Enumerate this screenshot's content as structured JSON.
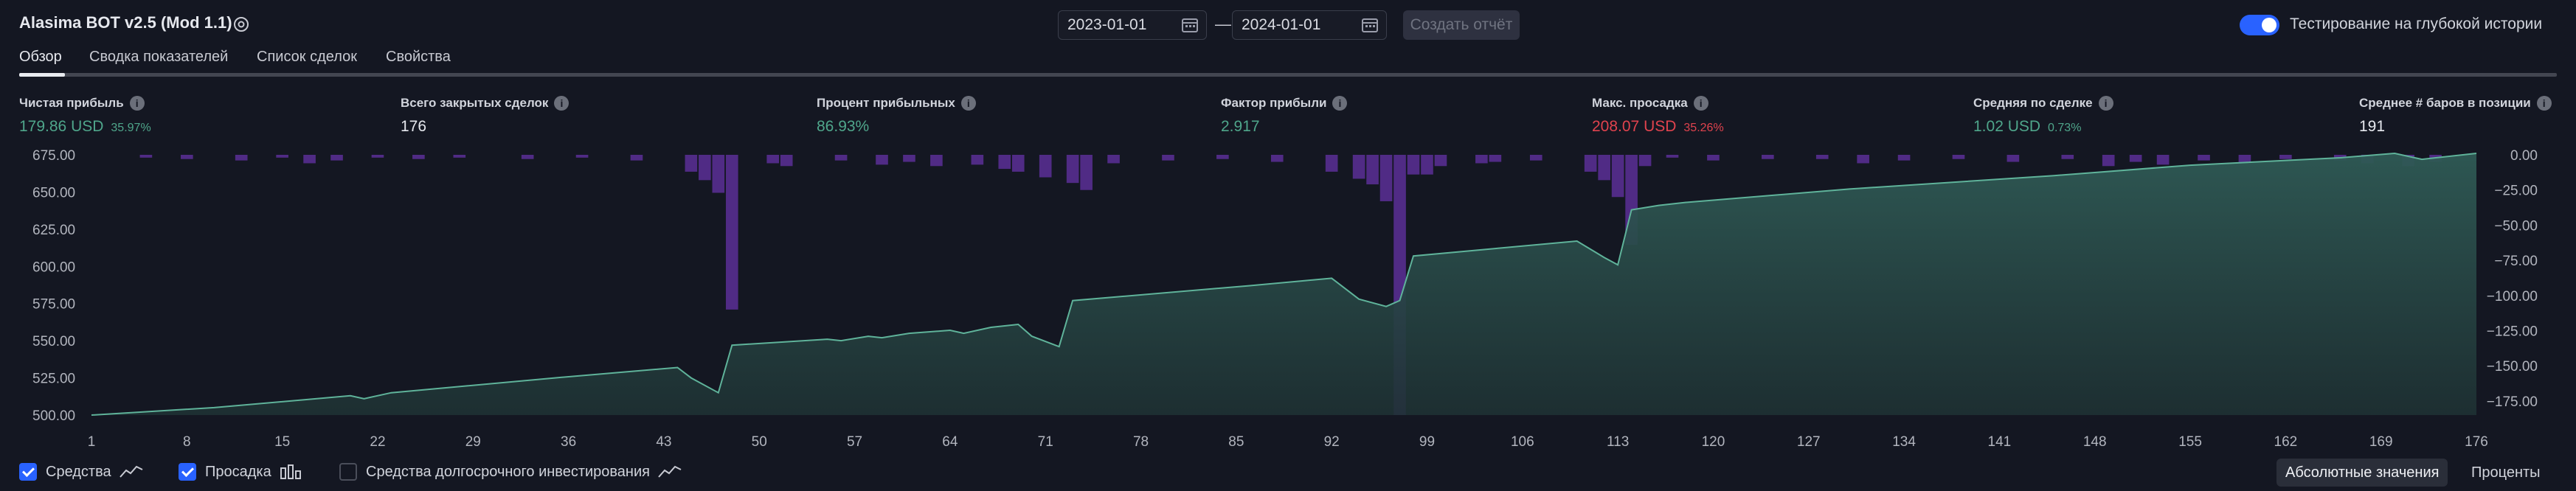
{
  "app": {
    "title": "Alasima BOT v2.5 (Mod 1.1)",
    "date_from": "2023-01-01",
    "date_to": "2024-01-01",
    "date_separator": "—",
    "create_report_label": "Создать отчёт",
    "deep_history_label": "Тестирование на глубокой истории",
    "deep_history_enabled": true
  },
  "tabs": [
    {
      "label": "Обзор",
      "active": true
    },
    {
      "label": "Сводка показателей",
      "active": false
    },
    {
      "label": "Список сделок",
      "active": false
    },
    {
      "label": "Свойства",
      "active": false
    }
  ],
  "stats": [
    {
      "label": "Чистая прибыль",
      "value": "179.86 USD",
      "pct": "35.97%",
      "color": "#4fa68b"
    },
    {
      "label": "Всего закрытых сделок",
      "value": "176",
      "pct": "",
      "color": "#e6e8ee"
    },
    {
      "label": "Процент прибыльных",
      "value": "86.93%",
      "pct": "",
      "color": "#4fa68b"
    },
    {
      "label": "Фактор прибыли",
      "value": "2.917",
      "pct": "",
      "color": "#4fa68b"
    },
    {
      "label": "Макс. просадка",
      "value": "208.07 USD",
      "pct": "35.26%",
      "color": "#e0434e"
    },
    {
      "label": "Средняя по сделке",
      "value": "1.02 USD",
      "pct": "0.73%",
      "color": "#4fa68b"
    },
    {
      "label": "Среднее # баров в позиции",
      "value": "191",
      "pct": "",
      "color": "#e6e8ee"
    }
  ],
  "chart_data": {
    "type": "area",
    "x_ticks": [
      "1",
      "8",
      "15",
      "22",
      "29",
      "36",
      "43",
      "50",
      "57",
      "64",
      "71",
      "78",
      "85",
      "92",
      "99",
      "106",
      "113",
      "120",
      "127",
      "134",
      "141",
      "148",
      "155",
      "162",
      "169",
      "176"
    ],
    "y_left_ticks": [
      "675.00",
      "650.00",
      "625.00",
      "600.00",
      "575.00",
      "550.00",
      "525.00",
      "500.00"
    ],
    "y_right_ticks": [
      "0.00",
      "−25.00",
      "−50.00",
      "−75.00",
      "−100.00",
      "−125.00",
      "−150.00",
      "−175.00"
    ],
    "ylim_left": [
      500,
      675
    ],
    "ylim_right": [
      -185,
      0
    ],
    "xlim": [
      1,
      176
    ],
    "equity": {
      "name": "Средства",
      "color": "#4fa68b",
      "points": [
        [
          1,
          500
        ],
        [
          10,
          505
        ],
        [
          20,
          513
        ],
        [
          21,
          511
        ],
        [
          23,
          515
        ],
        [
          35,
          525
        ],
        [
          44,
          532
        ],
        [
          45,
          525
        ],
        [
          47,
          515
        ],
        [
          48,
          547
        ],
        [
          55,
          551
        ],
        [
          56,
          550
        ],
        [
          58,
          553
        ],
        [
          59,
          552
        ],
        [
          61,
          555
        ],
        [
          64,
          557
        ],
        [
          65,
          555
        ],
        [
          67,
          559
        ],
        [
          69,
          561
        ],
        [
          70,
          553
        ],
        [
          72,
          546
        ],
        [
          73,
          577
        ],
        [
          86,
          587
        ],
        [
          92,
          592
        ],
        [
          94,
          578
        ],
        [
          96,
          573
        ],
        [
          97,
          577
        ],
        [
          98,
          607
        ],
        [
          104,
          612
        ],
        [
          110,
          617
        ],
        [
          112,
          606
        ],
        [
          113,
          601
        ],
        [
          114,
          638
        ],
        [
          116,
          641
        ],
        [
          118,
          643
        ],
        [
          130,
          652
        ],
        [
          145,
          661
        ],
        [
          155,
          668
        ],
        [
          166,
          673
        ],
        [
          170,
          676
        ],
        [
          172,
          672
        ],
        [
          176,
          676
        ]
      ]
    },
    "drawdown": {
      "name": "Просадка",
      "color": "#5b2f96",
      "bars": [
        [
          5,
          -2
        ],
        [
          8,
          -3
        ],
        [
          12,
          -4
        ],
        [
          15,
          -2
        ],
        [
          17,
          -6
        ],
        [
          19,
          -4
        ],
        [
          22,
          -2
        ],
        [
          25,
          -3
        ],
        [
          28,
          -2
        ],
        [
          33,
          -3
        ],
        [
          37,
          -2
        ],
        [
          41,
          -4
        ],
        [
          45,
          -12
        ],
        [
          46,
          -18
        ],
        [
          47,
          -27
        ],
        [
          48,
          -110
        ],
        [
          51,
          -6
        ],
        [
          52,
          -8
        ],
        [
          56,
          -4
        ],
        [
          59,
          -7
        ],
        [
          61,
          -5
        ],
        [
          63,
          -8
        ],
        [
          66,
          -7
        ],
        [
          68,
          -10
        ],
        [
          69,
          -12
        ],
        [
          71,
          -16
        ],
        [
          73,
          -20
        ],
        [
          74,
          -25
        ],
        [
          76,
          -6
        ],
        [
          80,
          -4
        ],
        [
          84,
          -3
        ],
        [
          88,
          -5
        ],
        [
          92,
          -12
        ],
        [
          94,
          -17
        ],
        [
          95,
          -21
        ],
        [
          96,
          -33
        ],
        [
          97,
          -185
        ],
        [
          98,
          -14
        ],
        [
          99,
          -14
        ],
        [
          100,
          -8
        ],
        [
          103,
          -6
        ],
        [
          104,
          -5
        ],
        [
          107,
          -4
        ],
        [
          111,
          -12
        ],
        [
          112,
          -18
        ],
        [
          113,
          -30
        ],
        [
          114,
          -64
        ],
        [
          115,
          -8
        ],
        [
          117,
          -2
        ],
        [
          120,
          -4
        ],
        [
          124,
          -3
        ],
        [
          128,
          -3
        ],
        [
          131,
          -6
        ],
        [
          134,
          -4
        ],
        [
          138,
          -3
        ],
        [
          142,
          -5
        ],
        [
          146,
          -3
        ],
        [
          149,
          -8
        ],
        [
          151,
          -5
        ],
        [
          153,
          -7
        ],
        [
          156,
          -4
        ],
        [
          159,
          -6
        ],
        [
          162,
          -3
        ],
        [
          166,
          -4
        ],
        [
          168,
          -6
        ],
        [
          171,
          -8
        ],
        [
          173,
          -5
        ]
      ]
    }
  },
  "legend": [
    {
      "label": "Средства",
      "checked": true
    },
    {
      "label": "Просадка",
      "checked": true
    },
    {
      "label": "Средства долгосрочного инвестирования",
      "checked": false
    }
  ],
  "view_modes": [
    {
      "label": "Абсолютные значения",
      "active": true
    },
    {
      "label": "Проценты",
      "active": false
    }
  ]
}
